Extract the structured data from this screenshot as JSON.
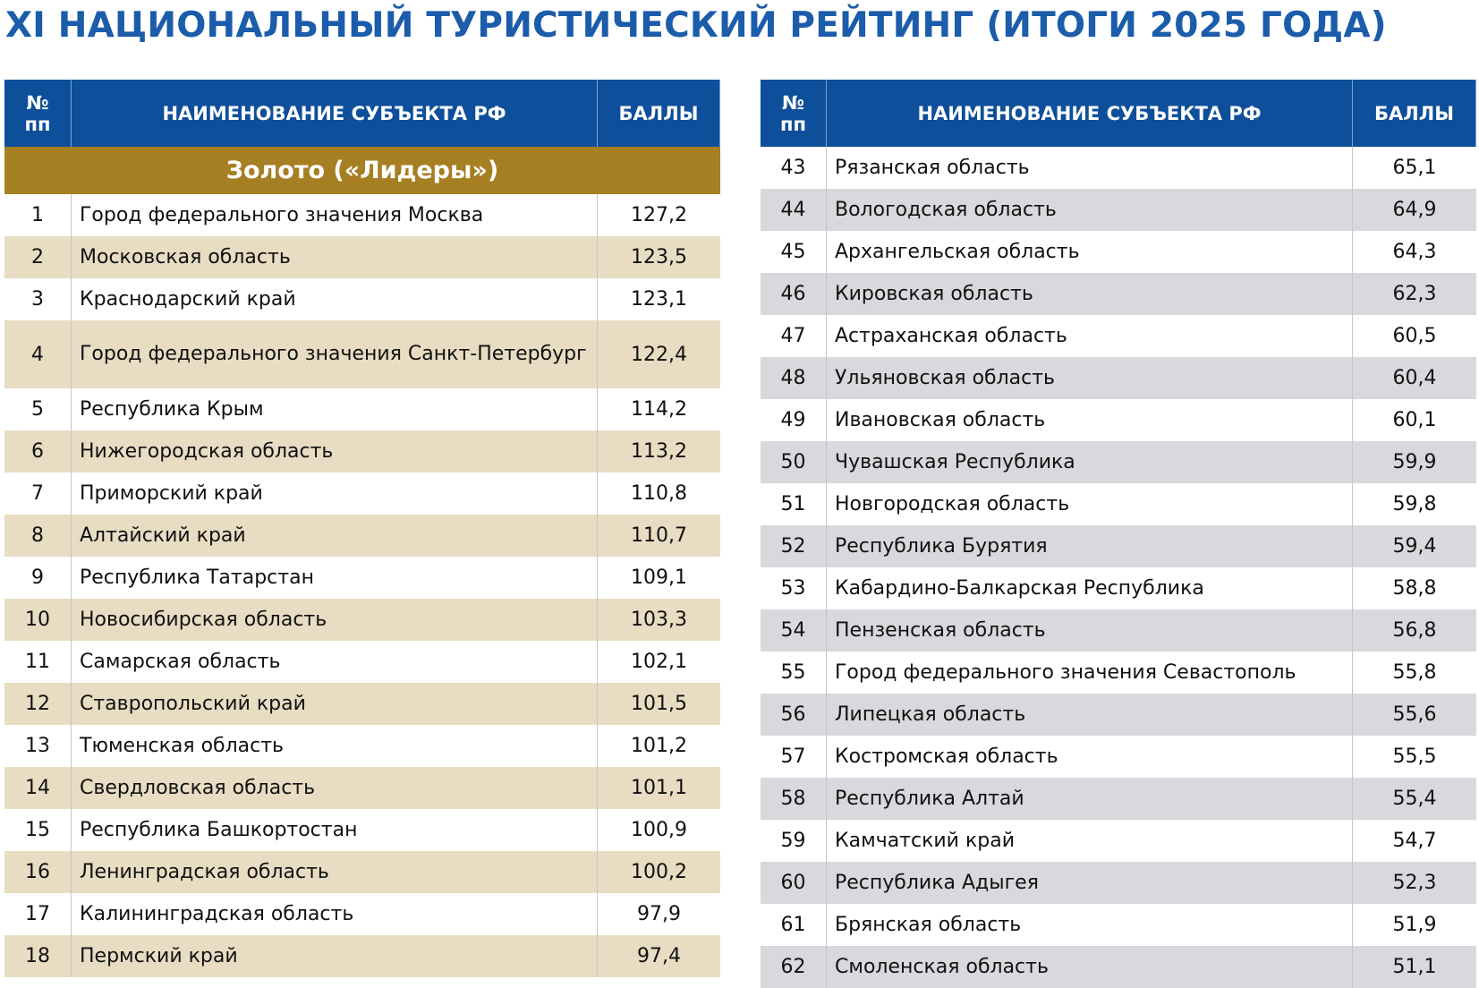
{
  "title": "XI НАЦИОНАЛЬНЫЙ ТУРИСТИЧЕСКИЙ РЕЙТИНГ (ИТОГИ 2025 ГОДА)",
  "tables": [
    {
      "header": [
        "№ пп",
        "НАИМЕНОВАНИЕ СУБЪЕКТА РФ",
        "БАЛЛЫ"
      ],
      "group": "Золото («Лидеры»)",
      "rows": [
        [
          "1",
          "Город федерального значения Москва",
          "127,2"
        ],
        [
          "2",
          "Московская область",
          "123,5"
        ],
        [
          "3",
          "Краснодарский край",
          "123,1"
        ],
        [
          "4",
          "Город федерального значения Санкт-Петербург",
          "122,4"
        ],
        [
          "5",
          "Республика Крым",
          "114,2"
        ],
        [
          "6",
          "Нижегородская область",
          "113,2"
        ],
        [
          "7",
          "Приморский край",
          "110,8"
        ],
        [
          "8",
          "Алтайский край",
          "110,7"
        ],
        [
          "9",
          "Республика Татарстан",
          "109,1"
        ],
        [
          "10",
          "Новосибирская область",
          "103,3"
        ],
        [
          "11",
          "Самарская область",
          "102,1"
        ],
        [
          "12",
          "Ставропольский край",
          "101,5"
        ],
        [
          "13",
          "Тюменская область",
          "101,2"
        ],
        [
          "14",
          "Свердловская область",
          "101,1"
        ],
        [
          "15",
          "Республика Башкортостан",
          "100,9"
        ],
        [
          "16",
          "Ленинградская область",
          "100,2"
        ],
        [
          "17",
          "Калининградская область",
          "97,9"
        ],
        [
          "18",
          "Пермский край",
          "97,4"
        ]
      ]
    },
    {
      "header": [
        "№ пп",
        "НАИМЕНОВАНИЕ СУБЪЕКТА РФ",
        "БАЛЛЫ"
      ],
      "rows": [
        [
          "43",
          "Рязанская область",
          "65,1"
        ],
        [
          "44",
          "Вологодская область",
          "64,9"
        ],
        [
          "45",
          "Архангельская область",
          "64,3"
        ],
        [
          "46",
          "Кировская область",
          "62,3"
        ],
        [
          "47",
          "Астраханская область",
          "60,5"
        ],
        [
          "48",
          "Ульяновская область",
          "60,4"
        ],
        [
          "49",
          "Ивановская область",
          "60,1"
        ],
        [
          "50",
          "Чувашская Республика",
          "59,9"
        ],
        [
          "51",
          "Новгородская область",
          "59,8"
        ],
        [
          "52",
          "Республика Бурятия",
          "59,4"
        ],
        [
          "53",
          "Кабардино-Балкарская Республика",
          "58,8"
        ],
        [
          "54",
          "Пензенская область",
          "56,8"
        ],
        [
          "55",
          "Город федерального значения Севастополь",
          "55,8"
        ],
        [
          "56",
          "Липецкая область",
          "55,6"
        ],
        [
          "57",
          "Костромская область",
          "55,5"
        ],
        [
          "58",
          "Республика Алтай",
          "55,4"
        ],
        [
          "59",
          "Камчатский край",
          "54,7"
        ],
        [
          "60",
          "Республика Адыгея",
          "52,3"
        ],
        [
          "61",
          "Брянская область",
          "51,9"
        ],
        [
          "62",
          "Смоленская область",
          "51,1"
        ]
      ]
    }
  ]
}
